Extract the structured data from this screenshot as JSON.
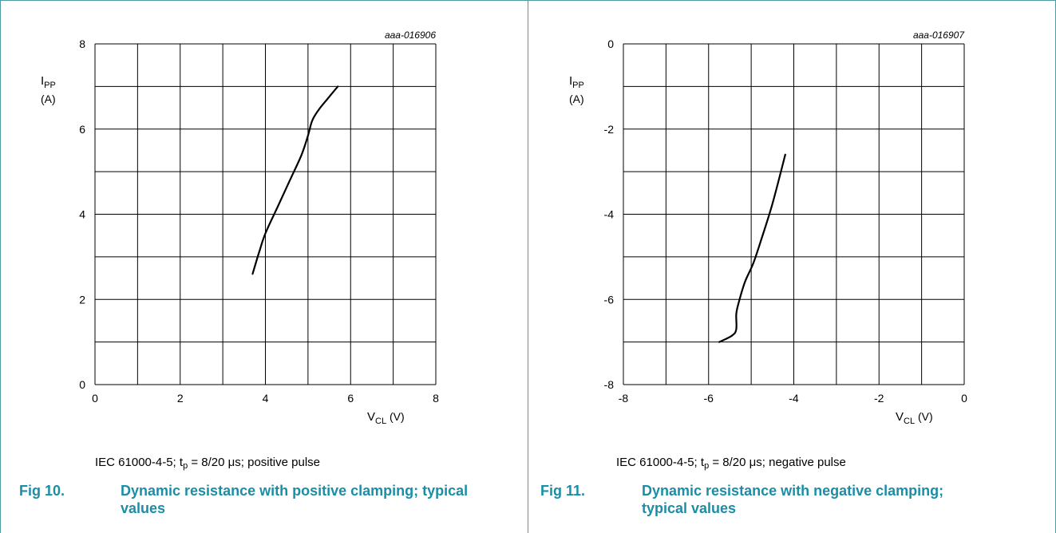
{
  "colors": {
    "accent": "#1b8ea6",
    "grid": "#000000",
    "curve": "#000000",
    "border": "#4f9aa7"
  },
  "chart_data": [
    {
      "type": "line",
      "id": "aaa-016906",
      "title": "",
      "xlabel": "V",
      "xlabel_sub": "CL",
      "xlabel_unit": " (V)",
      "ylabel": "I",
      "ylabel_sub": "PP",
      "ylabel_unit": "(A)",
      "xlim": [
        0,
        8
      ],
      "ylim": [
        0,
        8
      ],
      "xticks": [
        "0",
        "2",
        "4",
        "6",
        "8"
      ],
      "yticks": [
        "0",
        "2",
        "4",
        "6",
        "8"
      ],
      "grid": true,
      "series": [
        {
          "x": [
            3.7,
            3.85,
            4.0,
            4.3,
            4.6,
            4.85,
            5.0,
            5.1,
            5.25,
            5.45,
            5.7
          ],
          "y": [
            2.6,
            3.1,
            3.55,
            4.2,
            4.85,
            5.4,
            5.85,
            6.2,
            6.45,
            6.7,
            7.0
          ]
        }
      ]
    },
    {
      "type": "line",
      "id": "aaa-016907",
      "title": "",
      "xlabel": "V",
      "xlabel_sub": "CL",
      "xlabel_unit": " (V)",
      "ylabel": "I",
      "ylabel_sub": "PP",
      "ylabel_unit": "(A)",
      "xlim": [
        -8,
        0
      ],
      "ylim": [
        -8,
        0
      ],
      "xticks": [
        "-8",
        "-6",
        "-4",
        "-2",
        "0"
      ],
      "yticks": [
        "-8",
        "-6",
        "-4",
        "-2",
        "0"
      ],
      "grid": true,
      "series": [
        {
          "x": [
            -5.75,
            -5.45,
            -5.35,
            -5.35,
            -5.3,
            -5.15,
            -4.95,
            -4.75,
            -4.5,
            -4.2
          ],
          "y": [
            -7.0,
            -6.85,
            -6.7,
            -6.35,
            -6.1,
            -5.6,
            -5.15,
            -4.55,
            -3.75,
            -2.6
          ]
        }
      ]
    }
  ],
  "panels": [
    {
      "condition_prefix": "IEC 61000-4-5; t",
      "condition_sub": "p",
      "condition_suffix": " = 8/20 μs; positive pulse",
      "fig_number": "Fig 10.",
      "fig_caption": "Dynamic resistance with positive clamping; typical values"
    },
    {
      "condition_prefix": "IEC 61000-4-5; t",
      "condition_sub": "p",
      "condition_suffix": " = 8/20 μs; negative pulse",
      "fig_number": "Fig 11.",
      "fig_caption": "Dynamic resistance with negative clamping; typical values"
    }
  ]
}
